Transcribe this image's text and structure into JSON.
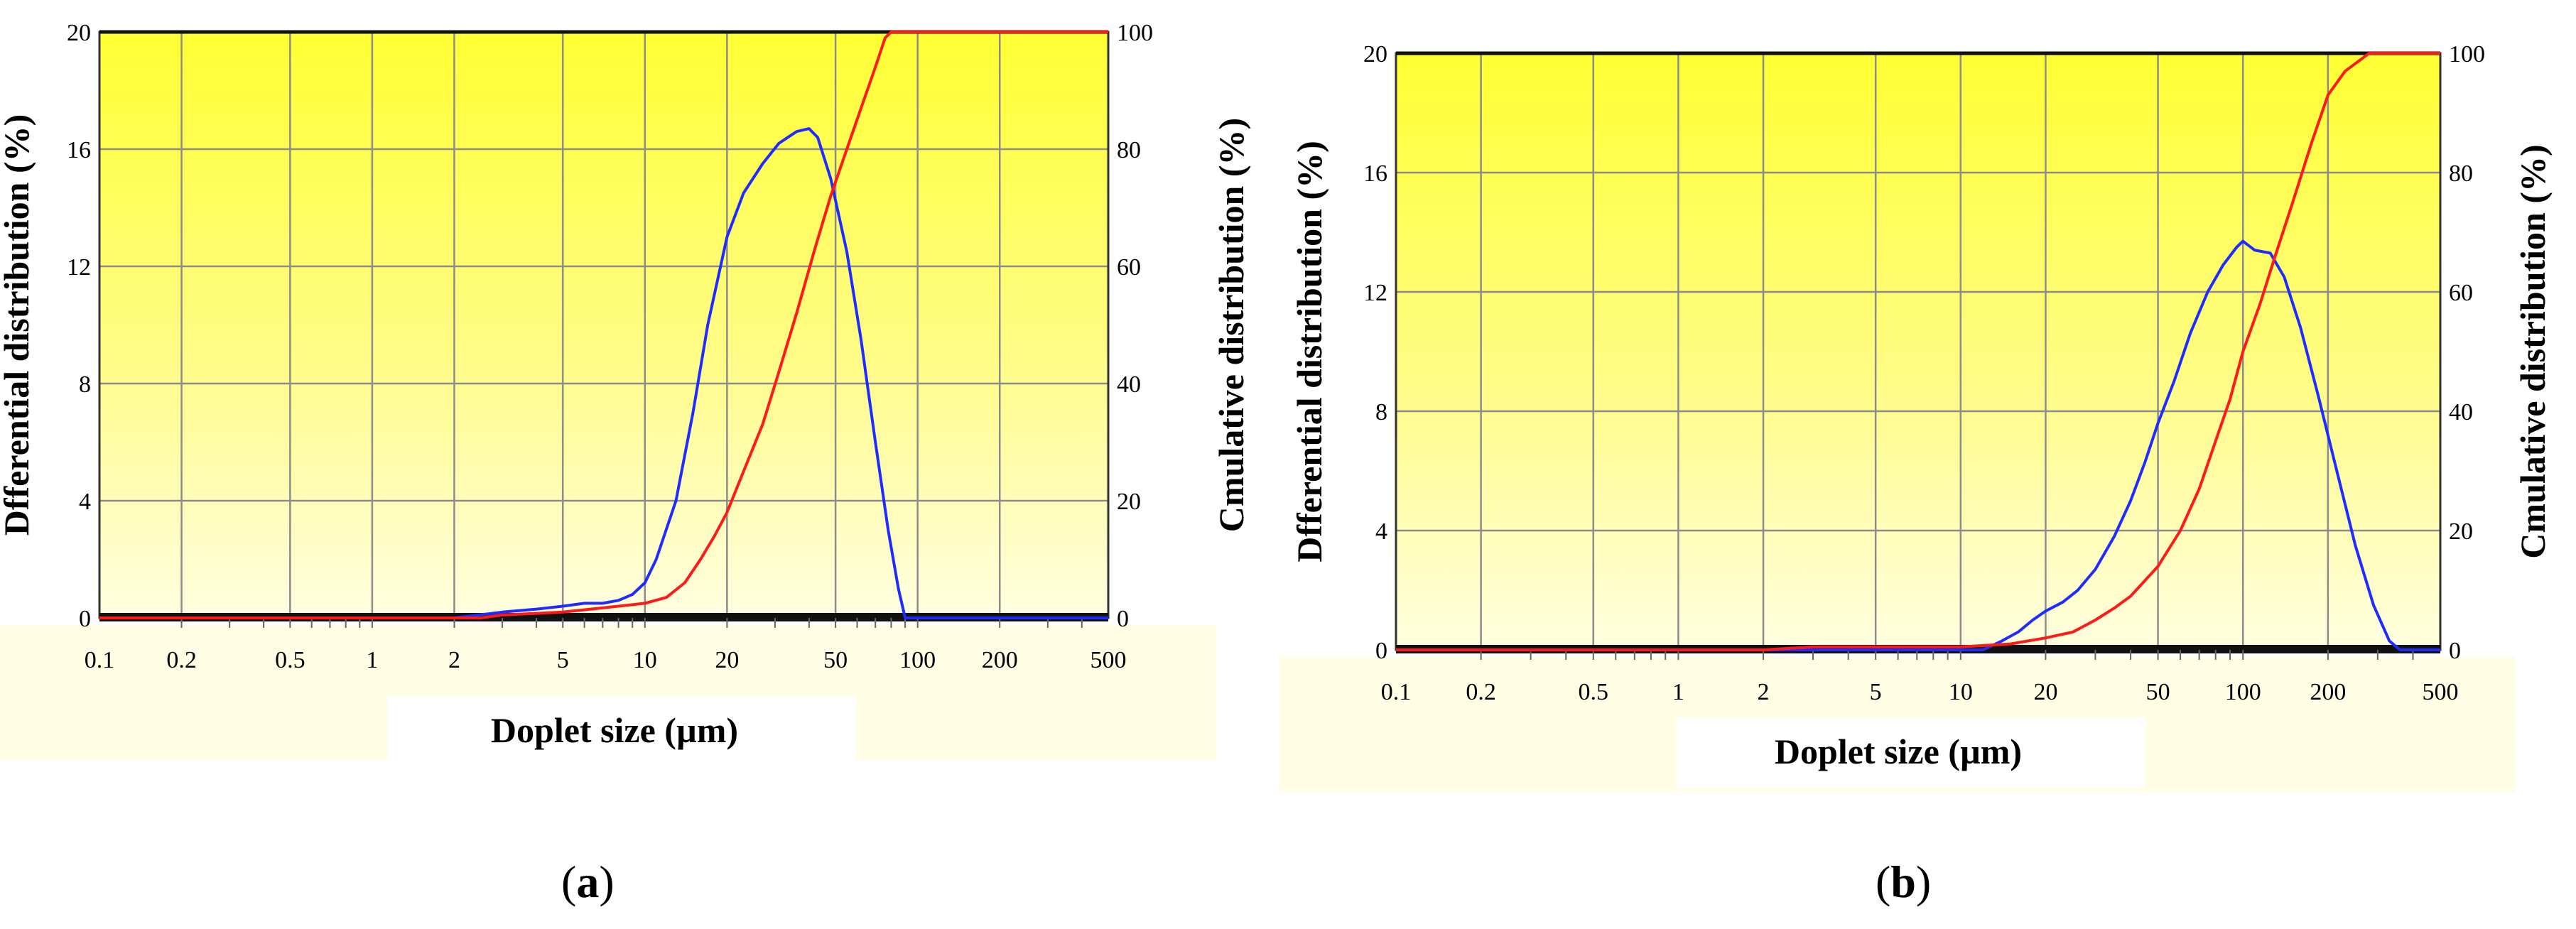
{
  "chart_data": [
    {
      "type": "line",
      "panel_label": "a",
      "xlabel": "Doplet size (µm)",
      "ylabel_left": "Dfferential distribution (%)",
      "ylabel_right": "Cmulative distribution (%)",
      "x_scale": "log",
      "xlim": [
        0.1,
        500
      ],
      "ylim_left": [
        0,
        20
      ],
      "ylim_right": [
        0,
        100
      ],
      "x_ticks": [
        0.1,
        0.2,
        0.5,
        1,
        2,
        5,
        10,
        20,
        50,
        100,
        200,
        500
      ],
      "x_tick_labels": [
        "0.1",
        "0.2",
        "0.5",
        "1",
        "2",
        "5",
        "10",
        "20",
        "50",
        "100",
        "200",
        "500"
      ],
      "y_ticks_left": [
        0,
        4,
        8,
        12,
        16,
        20
      ],
      "y_tick_labels_left": [
        "0",
        "4",
        "8",
        "12",
        "16",
        "20"
      ],
      "y_ticks_right": [
        0,
        20,
        40,
        60,
        80,
        100
      ],
      "y_tick_labels_right": [
        "0",
        "20",
        "40",
        "60",
        "80",
        "100"
      ],
      "grid": true,
      "series": [
        {
          "axis": "left",
          "color": "#1f2cff",
          "points": [
            [
              0.1,
              0
            ],
            [
              2.0,
              0
            ],
            [
              3.0,
              0.2
            ],
            [
              4.0,
              0.3
            ],
            [
              5.0,
              0.4
            ],
            [
              6.0,
              0.5
            ],
            [
              7.0,
              0.5
            ],
            [
              8.0,
              0.6
            ],
            [
              9.0,
              0.8
            ],
            [
              10,
              1.2
            ],
            [
              11,
              2.0
            ],
            [
              13,
              4.0
            ],
            [
              15,
              7.0
            ],
            [
              17,
              10.0
            ],
            [
              20,
              13.0
            ],
            [
              23,
              14.5
            ],
            [
              27,
              15.5
            ],
            [
              31,
              16.2
            ],
            [
              36,
              16.6
            ],
            [
              40,
              16.7
            ],
            [
              43,
              16.4
            ],
            [
              48,
              15.0
            ],
            [
              55,
              12.5
            ],
            [
              62,
              9.5
            ],
            [
              70,
              6.0
            ],
            [
              78,
              3.0
            ],
            [
              85,
              1.0
            ],
            [
              90,
              0
            ],
            [
              500,
              0
            ]
          ]
        },
        {
          "axis": "right",
          "color": "#ff1a1a",
          "points": [
            [
              0.1,
              0
            ],
            [
              2.5,
              0
            ],
            [
              3.0,
              0.5
            ],
            [
              5.0,
              1
            ],
            [
              8.0,
              2
            ],
            [
              10,
              2.5
            ],
            [
              12,
              3.5
            ],
            [
              14,
              6
            ],
            [
              16,
              10
            ],
            [
              18,
              14
            ],
            [
              20,
              18
            ],
            [
              23,
              25
            ],
            [
              27,
              33
            ],
            [
              31,
              42
            ],
            [
              36,
              52
            ],
            [
              42,
              63
            ],
            [
              48,
              72
            ],
            [
              55,
              80
            ],
            [
              62,
              87
            ],
            [
              70,
              94
            ],
            [
              76,
              99
            ],
            [
              80,
              100
            ],
            [
              500,
              100
            ]
          ]
        }
      ]
    },
    {
      "type": "line",
      "panel_label": "b",
      "xlabel": "Doplet size (µm)",
      "ylabel_left": "Dfferential distribution (%)",
      "ylabel_right": "Cmulative distribution (%)",
      "x_scale": "log",
      "xlim": [
        0.1,
        500
      ],
      "ylim_left": [
        0,
        20
      ],
      "ylim_right": [
        0,
        100
      ],
      "x_ticks": [
        0.1,
        0.2,
        0.5,
        1,
        2,
        5,
        10,
        20,
        50,
        100,
        200,
        500
      ],
      "x_tick_labels": [
        "0.1",
        "0.2",
        "0.5",
        "1",
        "2",
        "5",
        "10",
        "20",
        "50",
        "100",
        "200",
        "500"
      ],
      "y_ticks_left": [
        0,
        4,
        8,
        12,
        16,
        20
      ],
      "y_tick_labels_left": [
        "0",
        "4",
        "8",
        "12",
        "16",
        "20"
      ],
      "y_ticks_right": [
        0,
        20,
        40,
        60,
        80,
        100
      ],
      "y_tick_labels_right": [
        "0",
        "20",
        "40",
        "60",
        "80",
        "100"
      ],
      "grid": true,
      "series": [
        {
          "axis": "left",
          "color": "#1f2cff",
          "points": [
            [
              0.1,
              0
            ],
            [
              12,
              0
            ],
            [
              14,
              0.3
            ],
            [
              16,
              0.6
            ],
            [
              18,
              1.0
            ],
            [
              20,
              1.3
            ],
            [
              23,
              1.6
            ],
            [
              26,
              2.0
            ],
            [
              30,
              2.7
            ],
            [
              35,
              3.8
            ],
            [
              40,
              5.0
            ],
            [
              45,
              6.3
            ],
            [
              50,
              7.6
            ],
            [
              57,
              9.0
            ],
            [
              65,
              10.6
            ],
            [
              75,
              12.0
            ],
            [
              85,
              12.9
            ],
            [
              95,
              13.5
            ],
            [
              100,
              13.7
            ],
            [
              110,
              13.4
            ],
            [
              125,
              13.3
            ],
            [
              140,
              12.5
            ],
            [
              160,
              10.8
            ],
            [
              185,
              8.5
            ],
            [
              215,
              6.0
            ],
            [
              250,
              3.5
            ],
            [
              290,
              1.5
            ],
            [
              330,
              0.3
            ],
            [
              360,
              0
            ],
            [
              500,
              0
            ]
          ]
        },
        {
          "axis": "right",
          "color": "#ff1a1a",
          "points": [
            [
              0.1,
              0
            ],
            [
              2,
              0
            ],
            [
              3,
              0.5
            ],
            [
              5,
              0.5
            ],
            [
              10,
              0.5
            ],
            [
              15,
              1
            ],
            [
              20,
              2
            ],
            [
              25,
              3
            ],
            [
              30,
              5
            ],
            [
              35,
              7
            ],
            [
              40,
              9
            ],
            [
              50,
              14
            ],
            [
              60,
              20
            ],
            [
              70,
              27
            ],
            [
              80,
              35
            ],
            [
              90,
              42
            ],
            [
              100,
              50
            ],
            [
              115,
              58
            ],
            [
              130,
              66
            ],
            [
              150,
              75
            ],
            [
              175,
              85
            ],
            [
              200,
              93
            ],
            [
              230,
              97
            ],
            [
              280,
              100
            ],
            [
              500,
              100
            ]
          ]
        }
      ]
    }
  ]
}
